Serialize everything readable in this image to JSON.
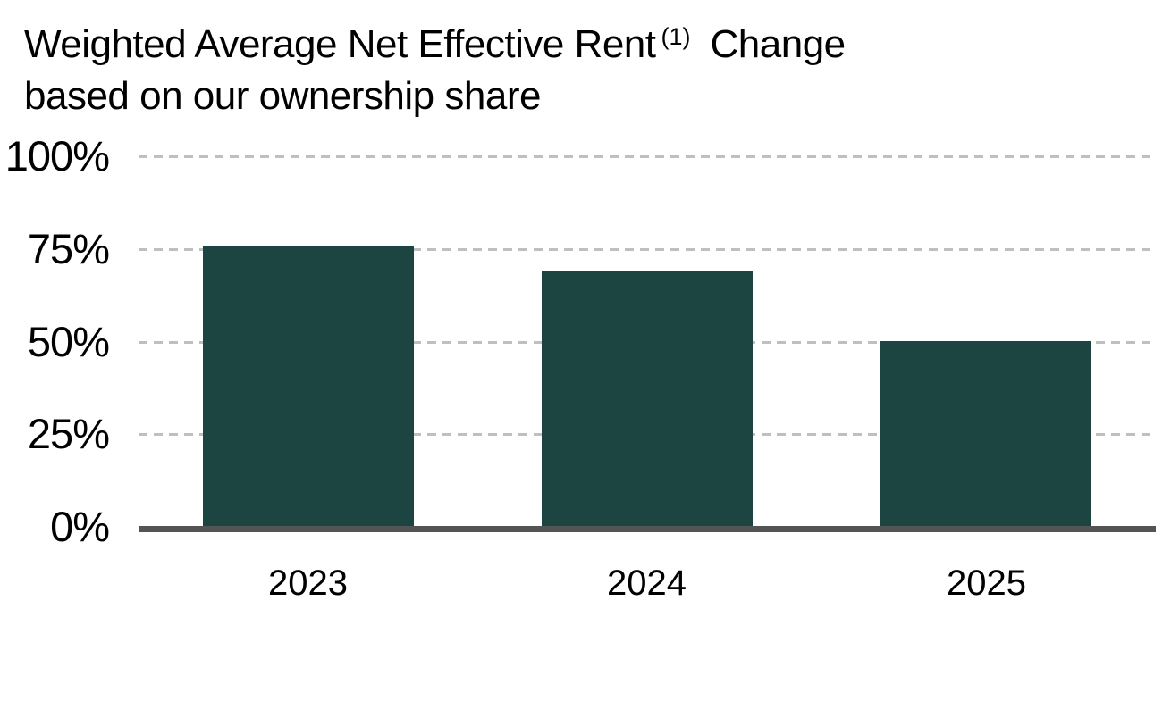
{
  "title": {
    "line1_main": "Weighted Average Net Effective Rent",
    "line1_superscript": "(1)",
    "line1_suffix": "Change",
    "line2": "based on our ownership share"
  },
  "chart_data": {
    "type": "bar",
    "title": "Weighted Average Net Effective Rent (1) Change based on our ownership share",
    "categories": [
      "2023",
      "2024",
      "2025"
    ],
    "values": [
      76,
      69,
      50
    ],
    "value_unit": "%",
    "xlabel": "",
    "ylabel": "",
    "ylim": [
      0,
      100
    ],
    "yticks": [
      100,
      75,
      50,
      25,
      0
    ],
    "ytick_labels": [
      "100%",
      "75%",
      "50%",
      "25%",
      "0%"
    ],
    "grid": "horizontal-dashed",
    "legend_position": "none",
    "bar_color": "#1C4542",
    "axis_line_color": "#545457",
    "gridline_color": "#BFBFBF",
    "text_color": "#000000"
  }
}
